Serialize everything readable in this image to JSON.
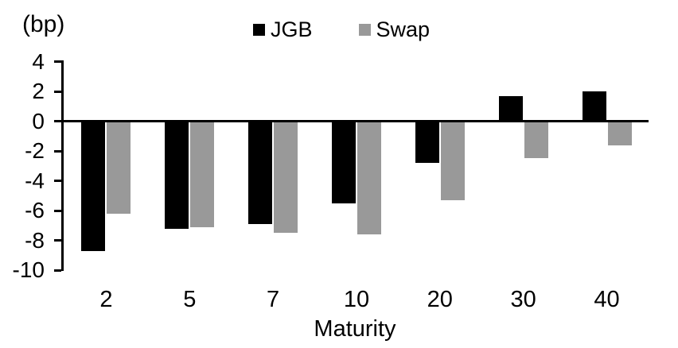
{
  "chart_data": {
    "type": "bar",
    "title": "",
    "unit_label": "(bp)",
    "xlabel": "Maturity",
    "ylabel": "",
    "categories": [
      "2",
      "5",
      "7",
      "10",
      "20",
      "30",
      "40"
    ],
    "series": [
      {
        "name": "JGB",
        "color": "#000000",
        "values": [
          -8.7,
          -7.2,
          -6.9,
          -5.5,
          -2.8,
          1.7,
          2.0
        ]
      },
      {
        "name": "Swap",
        "color": "#999999",
        "values": [
          -6.2,
          -7.1,
          -7.5,
          -7.6,
          -5.3,
          -2.5,
          -1.6
        ]
      }
    ],
    "y_ticks": [
      4,
      2,
      0,
      -2,
      -4,
      -6,
      -8,
      -10
    ],
    "ylim": [
      -10,
      4
    ],
    "grid": false,
    "legend_position": "top-center",
    "legend": [
      "JGB",
      "Swap"
    ]
  }
}
